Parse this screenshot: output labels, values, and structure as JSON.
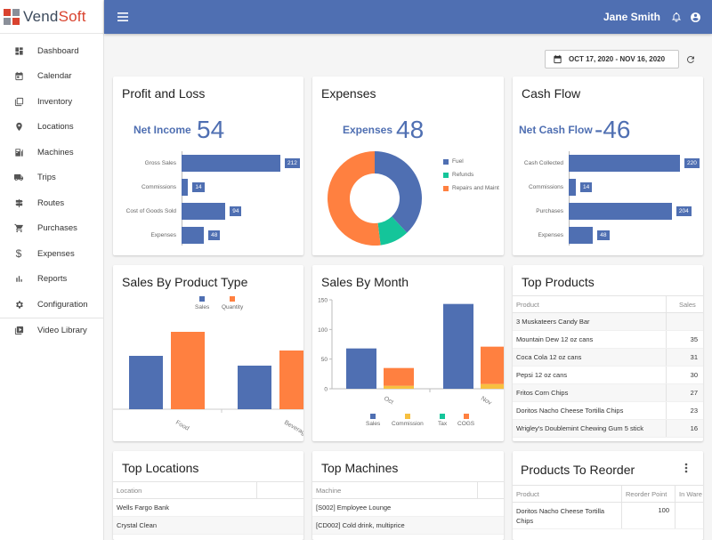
{
  "app": {
    "brand_prefix": "Vend",
    "brand_suffix": "Soft"
  },
  "colors": {
    "primary": "#4f6fb2",
    "orange": "#ff8040",
    "teal": "#14c59a",
    "yellow": "#f7c040"
  },
  "sidebar": {
    "items": [
      {
        "label": "Dashboard",
        "icon": "dashboard-icon"
      },
      {
        "label": "Calendar",
        "icon": "calendar-icon"
      },
      {
        "label": "Inventory",
        "icon": "inventory-icon"
      },
      {
        "label": "Locations",
        "icon": "location-pin-icon"
      },
      {
        "label": "Machines",
        "icon": "machine-icon"
      },
      {
        "label": "Trips",
        "icon": "truck-icon"
      },
      {
        "label": "Routes",
        "icon": "signpost-icon"
      },
      {
        "label": "Purchases",
        "icon": "cart-icon"
      },
      {
        "label": "Expenses",
        "icon": "dollar-icon"
      },
      {
        "label": "Reports",
        "icon": "bar-chart-icon"
      },
      {
        "label": "Configuration",
        "icon": "gear-icon"
      },
      {
        "label": "Video Library",
        "icon": "video-library-icon"
      }
    ]
  },
  "topbar": {
    "user_name": "Jane Smith"
  },
  "date_range": {
    "label": "OCT 17, 2020 - NOV 16, 2020"
  },
  "profit_loss": {
    "title": "Profit and Loss",
    "kpi_label": "Net Income",
    "kpi_value": "54",
    "chart_data": {
      "type": "bar",
      "orientation": "horizontal",
      "categories": [
        "Gross Sales",
        "Commissions",
        "Cost of Goods Sold",
        "Expenses"
      ],
      "values": [
        212,
        14,
        94,
        48
      ],
      "labels": [
        "212",
        "14",
        "94",
        "48"
      ]
    }
  },
  "expenses": {
    "title": "Expenses",
    "kpi_label": "Expenses",
    "kpi_value": "48",
    "chart_data": {
      "type": "pie",
      "categories": [
        "Fuel",
        "Refunds",
        "Repairs and Maint"
      ],
      "values": [
        38,
        10,
        52
      ],
      "colors": [
        "#4f6fb2",
        "#14c59a",
        "#ff8040"
      ]
    }
  },
  "cash_flow": {
    "title": "Cash Flow",
    "kpi_label": "Net Cash Flow",
    "kpi_value": "-46",
    "chart_data": {
      "type": "bar",
      "orientation": "horizontal",
      "categories": [
        "Cash Collected",
        "Commissions",
        "Purchases",
        "Expenses"
      ],
      "values": [
        220,
        14,
        204,
        48
      ],
      "labels": [
        "220",
        "14",
        "204",
        "48"
      ]
    }
  },
  "sales_by_product_type": {
    "title": "Sales By Product Type",
    "chart_data": {
      "type": "bar",
      "categories": [
        "Food",
        "Beverage"
      ],
      "series": [
        {
          "name": "Sales",
          "values": [
            60,
            49
          ],
          "color": "#4f6fb2"
        },
        {
          "name": "Quantity",
          "values": [
            87,
            66
          ],
          "color": "#ff8040"
        }
      ],
      "ylim": [
        0,
        100
      ]
    }
  },
  "sales_by_month": {
    "title": "Sales By Month",
    "chart_data": {
      "type": "bar",
      "stacked_pairs": true,
      "categories": [
        "Oct",
        "Nov"
      ],
      "yticks": [
        "0",
        "50",
        "100",
        "150"
      ],
      "ylim": [
        0,
        150
      ],
      "series": [
        {
          "name": "Sales",
          "values": [
            68,
            143
          ],
          "color": "#4f6fb2"
        },
        {
          "name": "Commission",
          "values": [
            5,
            8
          ],
          "color": "#f7c040"
        },
        {
          "name": "Tax",
          "values": [
            0,
            0
          ],
          "color": "#14c59a"
        },
        {
          "name": "COGS",
          "values": [
            30,
            63
          ],
          "color": "#ff8040"
        }
      ]
    }
  },
  "top_products": {
    "title": "Top Products",
    "columns": [
      "Product",
      "Sales"
    ],
    "rows": [
      {
        "product": "3 Muskateers Candy Bar",
        "sales": ""
      },
      {
        "product": "Mountain Dew 12 oz cans",
        "sales": "35"
      },
      {
        "product": "Coca Cola 12 oz cans",
        "sales": "31"
      },
      {
        "product": "Pepsi 12 oz cans",
        "sales": "30"
      },
      {
        "product": "Fritos Corn Chips",
        "sales": "27"
      },
      {
        "product": "Doritos Nacho Cheese Tortilla Chips",
        "sales": "23"
      },
      {
        "product": "Wrigley's Doublemint Chewing Gum 5 stick",
        "sales": "16"
      }
    ]
  },
  "top_locations": {
    "title": "Top Locations",
    "columns": [
      "Location",
      ""
    ],
    "rows": [
      {
        "name": "Wells Fargo Bank"
      },
      {
        "name": "Crystal Clean"
      }
    ]
  },
  "top_machines": {
    "title": "Top Machines",
    "columns": [
      "Machine",
      ""
    ],
    "rows": [
      {
        "name": "[S002] Employee Lounge"
      },
      {
        "name": "[CD002] Cold drink, multiprice"
      }
    ]
  },
  "products_to_reorder": {
    "title": "Products To Reorder",
    "columns": [
      "Product",
      "Reorder Point",
      "In Ware"
    ],
    "rows": [
      {
        "product": "Doritos Nacho Cheese Tortilla Chips",
        "reorder_point": "100",
        "in_warehouse": ""
      }
    ]
  }
}
